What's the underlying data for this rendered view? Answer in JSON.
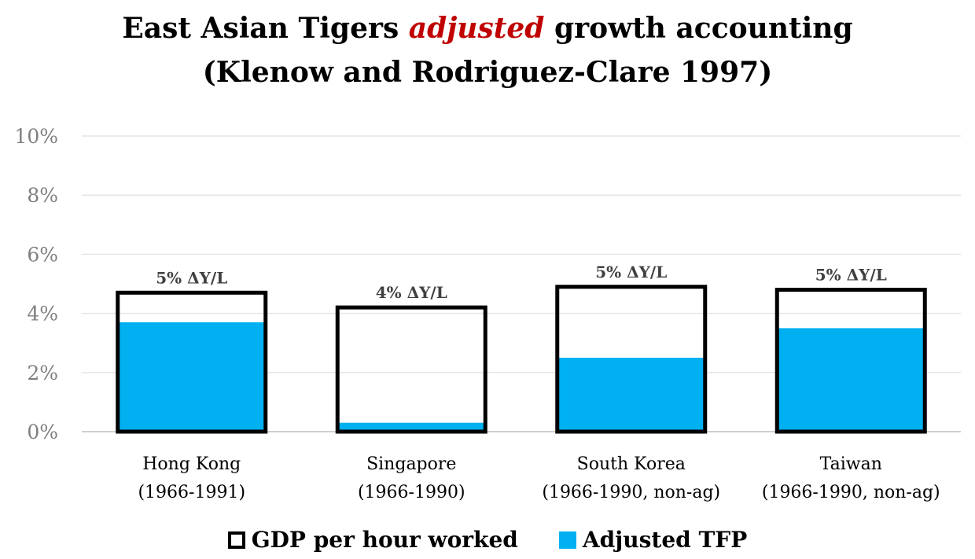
{
  "title": {
    "part1": "East Asian Tigers ",
    "emphasis": "adjusted",
    "part2": " growth accounting",
    "line2": "(Klenow and Rodriguez-Clare 1997)"
  },
  "colors": {
    "tfp": "#00b0f0",
    "gdp_outline": "#000000",
    "emphasis": "#c00000",
    "grid": "#e6e6e6"
  },
  "chart_data": {
    "type": "bar",
    "categories": [
      [
        "Hong Kong",
        "(1966-1991)"
      ],
      [
        "Singapore",
        "(1966-1990)"
      ],
      [
        "South Korea",
        "(1966-1990, non-ag)"
      ],
      [
        "Taiwan",
        "(1966-1990, non-ag)"
      ]
    ],
    "series": [
      {
        "name": "GDP per hour worked",
        "values": [
          4.7,
          4.2,
          4.9,
          4.8
        ],
        "style": "outline"
      },
      {
        "name": "Adjusted TFP",
        "values": [
          3.7,
          0.3,
          2.5,
          3.5
        ],
        "style": "fill"
      }
    ],
    "data_labels": [
      "5% ΔY/L",
      "4% ΔY/L",
      "5% ΔY/L",
      "5% ΔY/L"
    ],
    "ylim": [
      0,
      10
    ],
    "yticks": [
      0,
      2,
      4,
      6,
      8,
      10
    ],
    "ytick_labels": [
      "0%",
      "2%",
      "4%",
      "6%",
      "8%",
      "10%"
    ],
    "grid": true,
    "legend": "bottom"
  },
  "legend": {
    "gdp_label": "GDP per hour worked",
    "tfp_label": "Adjusted TFP"
  }
}
